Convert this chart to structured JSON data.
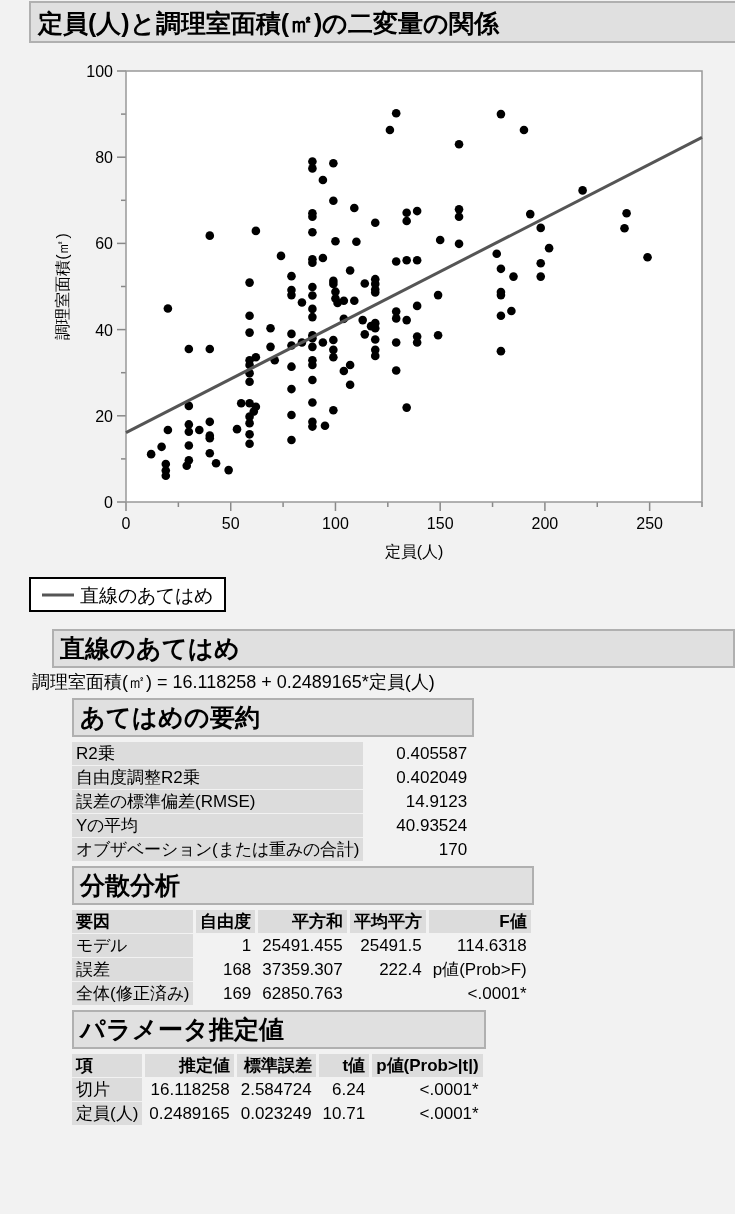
{
  "chart_data": [
    {
      "type": "scatter",
      "title": "定員(人)と調理室面積(㎡)の二変量の関係",
      "xlabel": "定員(人)",
      "ylabel": "調理室面積(㎡)",
      "xlim": [
        0,
        275
      ],
      "ylim": [
        0,
        100
      ],
      "xticks": [
        0,
        {
          "value": 25,
          "label": null
        },
        50,
        {
          "value": 75,
          "label": null
        },
        100,
        {
          "value": 125,
          "label": null
        },
        150,
        {
          "value": 175,
          "label": null
        },
        200,
        {
          "value": 225,
          "label": null
        },
        250,
        {
          "value": 275,
          "label": null
        }
      ],
      "yticks": [
        0,
        {
          "value": 10,
          "label": null
        },
        20,
        {
          "value": 30,
          "label": null
        },
        40,
        {
          "value": 50,
          "label": null
        },
        60,
        {
          "value": 70,
          "label": null
        },
        80,
        {
          "value": 90,
          "label": null
        },
        100
      ],
      "grid": false,
      "legend": "bottom left",
      "series": [
        {
          "type": "scatter",
          "marker": "circle",
          "color": "#000000",
          "x": [
            12,
            17,
            20,
            20,
            19,
            19,
            19,
            30,
            30,
            30,
            30,
            30,
            29,
            30,
            35,
            40,
            40,
            40,
            40,
            40,
            40,
            43,
            49,
            53,
            55,
            59,
            59,
            59,
            59,
            59,
            59,
            59,
            62,
            62,
            59,
            62,
            61,
            59,
            59,
            59,
            59,
            69,
            69,
            71,
            74,
            79,
            79,
            79,
            79,
            79,
            79,
            79,
            79,
            79,
            84,
            84,
            89,
            89,
            89,
            89,
            89,
            89,
            89,
            89,
            89,
            89,
            89,
            89,
            89,
            89,
            89,
            89,
            89,
            89,
            89,
            89,
            99,
            94,
            99,
            109,
            119,
            100,
            110,
            94,
            107,
            99,
            99,
            100,
            100,
            101,
            104,
            109,
            104,
            114,
            119,
            119,
            119,
            119,
            113,
            114,
            117,
            119,
            119,
            119,
            119,
            119,
            94,
            99,
            99,
            99,
            104,
            107,
            107,
            99,
            95,
            129,
            126,
            129,
            129,
            129,
            129,
            129,
            134,
            134,
            139,
            134,
            139,
            134,
            139,
            139,
            139,
            134,
            149,
            149,
            150,
            159,
            159,
            159,
            159,
            179,
            177,
            179,
            185,
            179,
            179,
            179,
            184,
            179,
            190,
            218,
            193,
            198,
            202,
            198,
            198,
            239,
            238,
            249
          ],
          "values": [
            11.1,
            12.8,
            16.7,
            44.9,
            8.8,
            7.3,
            6.1,
            22.3,
            18,
            16.3,
            13.1,
            9.7,
            8.4,
            35.5,
            16.7,
            61.8,
            35.5,
            18.6,
            15.4,
            14.8,
            11.3,
            9,
            7.4,
            16.9,
            22.9,
            50.9,
            43.2,
            39.3,
            32.9,
            31.8,
            29.9,
            27.9,
            62.9,
            33.6,
            22.9,
            22.1,
            21,
            19.8,
            18.3,
            15.7,
            13.5,
            40.3,
            36,
            32.9,
            57.1,
            52.4,
            49.2,
            48,
            39,
            36.3,
            31.4,
            26.2,
            20.2,
            14.4,
            46.3,
            37,
            79,
            77.4,
            67,
            66.2,
            62.6,
            56.3,
            55.5,
            49.9,
            47.9,
            44.8,
            42.9,
            38.7,
            38,
            36,
            32.9,
            31.8,
            28.3,
            23.1,
            18.6,
            17.5,
            78.6,
            74.7,
            69.9,
            68.2,
            64.8,
            60.5,
            60.4,
            56.6,
            53.7,
            51.3,
            50.6,
            48.8,
            47.2,
            46.2,
            46.7,
            46.7,
            42.5,
            50.7,
            51.7,
            50.6,
            49.3,
            48.6,
            42.2,
            38.9,
            40.8,
            41.5,
            40.3,
            37.7,
            35.3,
            33.9,
            37,
            37.6,
            35.3,
            33.6,
            30.4,
            31.8,
            27.2,
            21.3,
            17.7,
            90.2,
            86.3,
            55.8,
            44.2,
            42.6,
            37,
            30.5,
            67.1,
            65.2,
            67.5,
            56.1,
            56.1,
            42.2,
            45.5,
            38.4,
            37,
            21.9,
            48,
            38.7,
            60.8,
            83,
            67.9,
            66.2,
            59.9,
            90,
            57.6,
            54.1,
            52.3,
            48.7,
            48,
            43.2,
            44.3,
            35,
            86.3,
            72.3,
            66.8,
            63.6,
            58.9,
            55.4,
            52.3,
            67,
            63.5,
            56.8
          ]
        },
        {
          "type": "line",
          "marker": "none",
          "name": "直線のあてはめ",
          "color": "#555555",
          "x": [
            0,
            275
          ],
          "values": [
            16.1,
            84.6
          ]
        }
      ]
    },
    {
      "type": "other",
      "title": "直線のあてはめ",
      "annotations": [
        "調理室面積(㎡) = 16.118258 + 0.2489165*定員(人)"
      ]
    },
    {
      "type": "other",
      "title": "あてはめの要約",
      "cell_labels": [
        [
          "R2乗",
          "0.405587"
        ],
        [
          "自由度調整R2乗",
          "0.402049"
        ],
        [
          "誤差の標準偏差(RMSE)",
          "14.9123"
        ],
        [
          "Yの平均",
          "40.93524"
        ],
        [
          "オブザベーション(または重みの合計)",
          "170"
        ]
      ]
    },
    {
      "type": "other",
      "title": "分散分析",
      "categories": [
        "要因",
        "自由度",
        "平方和",
        "平均平方",
        "F値"
      ],
      "cell_labels": [
        [
          "モデル",
          "1",
          "25491.455",
          "25491.5",
          "114.6318"
        ],
        [
          "誤差",
          "168",
          "37359.307",
          "222.4",
          "p値(Prob>F)"
        ],
        [
          "全体(修正済み)",
          "169",
          "62850.763",
          null,
          "<.0001*"
        ]
      ]
    },
    {
      "type": "other",
      "title": "パラメータ推定値",
      "categories": [
        "項",
        "推定値",
        "標準誤差",
        "t値",
        "p値(Prob>|t|)"
      ],
      "cell_labels": [
        [
          "切片",
          "16.118258",
          "2.584724",
          "6.24",
          "<.0001*"
        ],
        [
          "定員(人)",
          "0.2489165",
          "0.023249",
          "10.71",
          "<.0001*"
        ]
      ]
    }
  ]
}
